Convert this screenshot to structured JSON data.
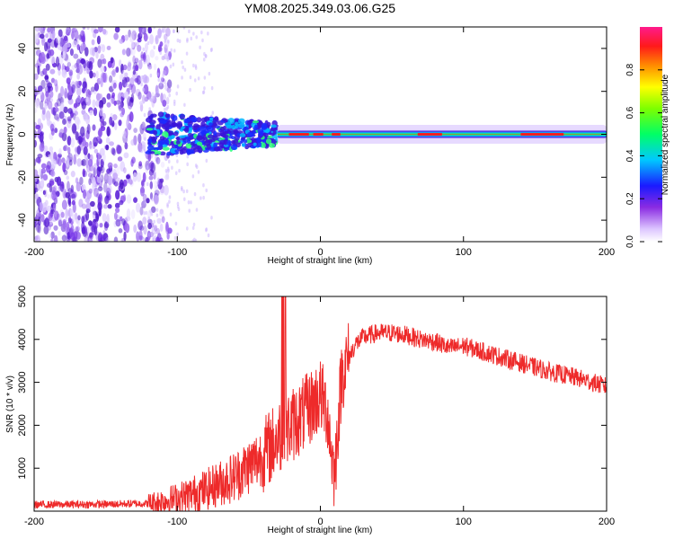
{
  "figure_title": "YM08.2025.349.03.06.G25",
  "colors": {
    "snr_line": "#ee2a2a",
    "spectrogram_base": "#5a1fd6",
    "background": "#ffffff",
    "axis": "#000000"
  },
  "chart_data": [
    {
      "type": "heatmap",
      "title": "YM08.2025.349.03.06.G25",
      "xlabel": "Height of straight line (km)",
      "ylabel": "Frequency (Hz)",
      "xlim": [
        -200,
        200
      ],
      "ylim": [
        -50,
        50
      ],
      "x_ticks": [
        -200,
        -100,
        0,
        100,
        200
      ],
      "y_ticks": [
        40,
        20,
        0,
        -20,
        -40
      ],
      "colorbar": {
        "label": "Normalized spectral amplitude",
        "range": [
          0.0,
          1.0
        ],
        "ticks": [
          0.0,
          0.2,
          0.4,
          0.6,
          0.8
        ],
        "tick_labels": [
          "0.0",
          "0.2",
          "0.4",
          "0.6",
          "0.8"
        ],
        "colormap": "rainbow-to-magenta"
      },
      "features": [
        {
          "name": "noise",
          "x_range": [
            -200,
            -120
          ],
          "freq_range": [
            -50,
            50
          ],
          "amplitude": 0.1
        },
        {
          "name": "transition",
          "x_range": [
            -120,
            -30
          ],
          "freq_range": [
            -10,
            10
          ],
          "amplitude": 0.4
        },
        {
          "name": "signal_band",
          "x_range": [
            -30,
            200
          ],
          "freq_center": 0,
          "half_width_hz": 2,
          "amplitude": 0.95
        }
      ]
    },
    {
      "type": "line",
      "xlabel": "Height of straight line (km)",
      "ylabel": "SNR (10 * v/v)",
      "xlim": [
        -200,
        200
      ],
      "ylim": [
        0,
        5000
      ],
      "x_ticks": [
        -200,
        -100,
        0,
        100,
        200
      ],
      "y_ticks": [
        1000,
        2000,
        3000,
        4000,
        5000
      ],
      "series": [
        {
          "name": "SNR",
          "x": [
            -200,
            -150,
            -120,
            -100,
            -80,
            -60,
            -40,
            -30,
            -20,
            -10,
            0,
            5,
            8,
            10,
            12,
            15,
            20,
            25,
            30,
            40,
            50,
            60,
            70,
            80,
            90,
            100,
            120,
            140,
            160,
            180,
            200
          ],
          "values": [
            150,
            160,
            180,
            300,
            500,
            800,
            1300,
            1700,
            2000,
            2300,
            2700,
            2300,
            1300,
            800,
            1900,
            3200,
            3600,
            3900,
            4050,
            4150,
            4150,
            4100,
            4000,
            3950,
            3800,
            3850,
            3650,
            3450,
            3250,
            3100,
            2900
          ]
        }
      ]
    }
  ]
}
